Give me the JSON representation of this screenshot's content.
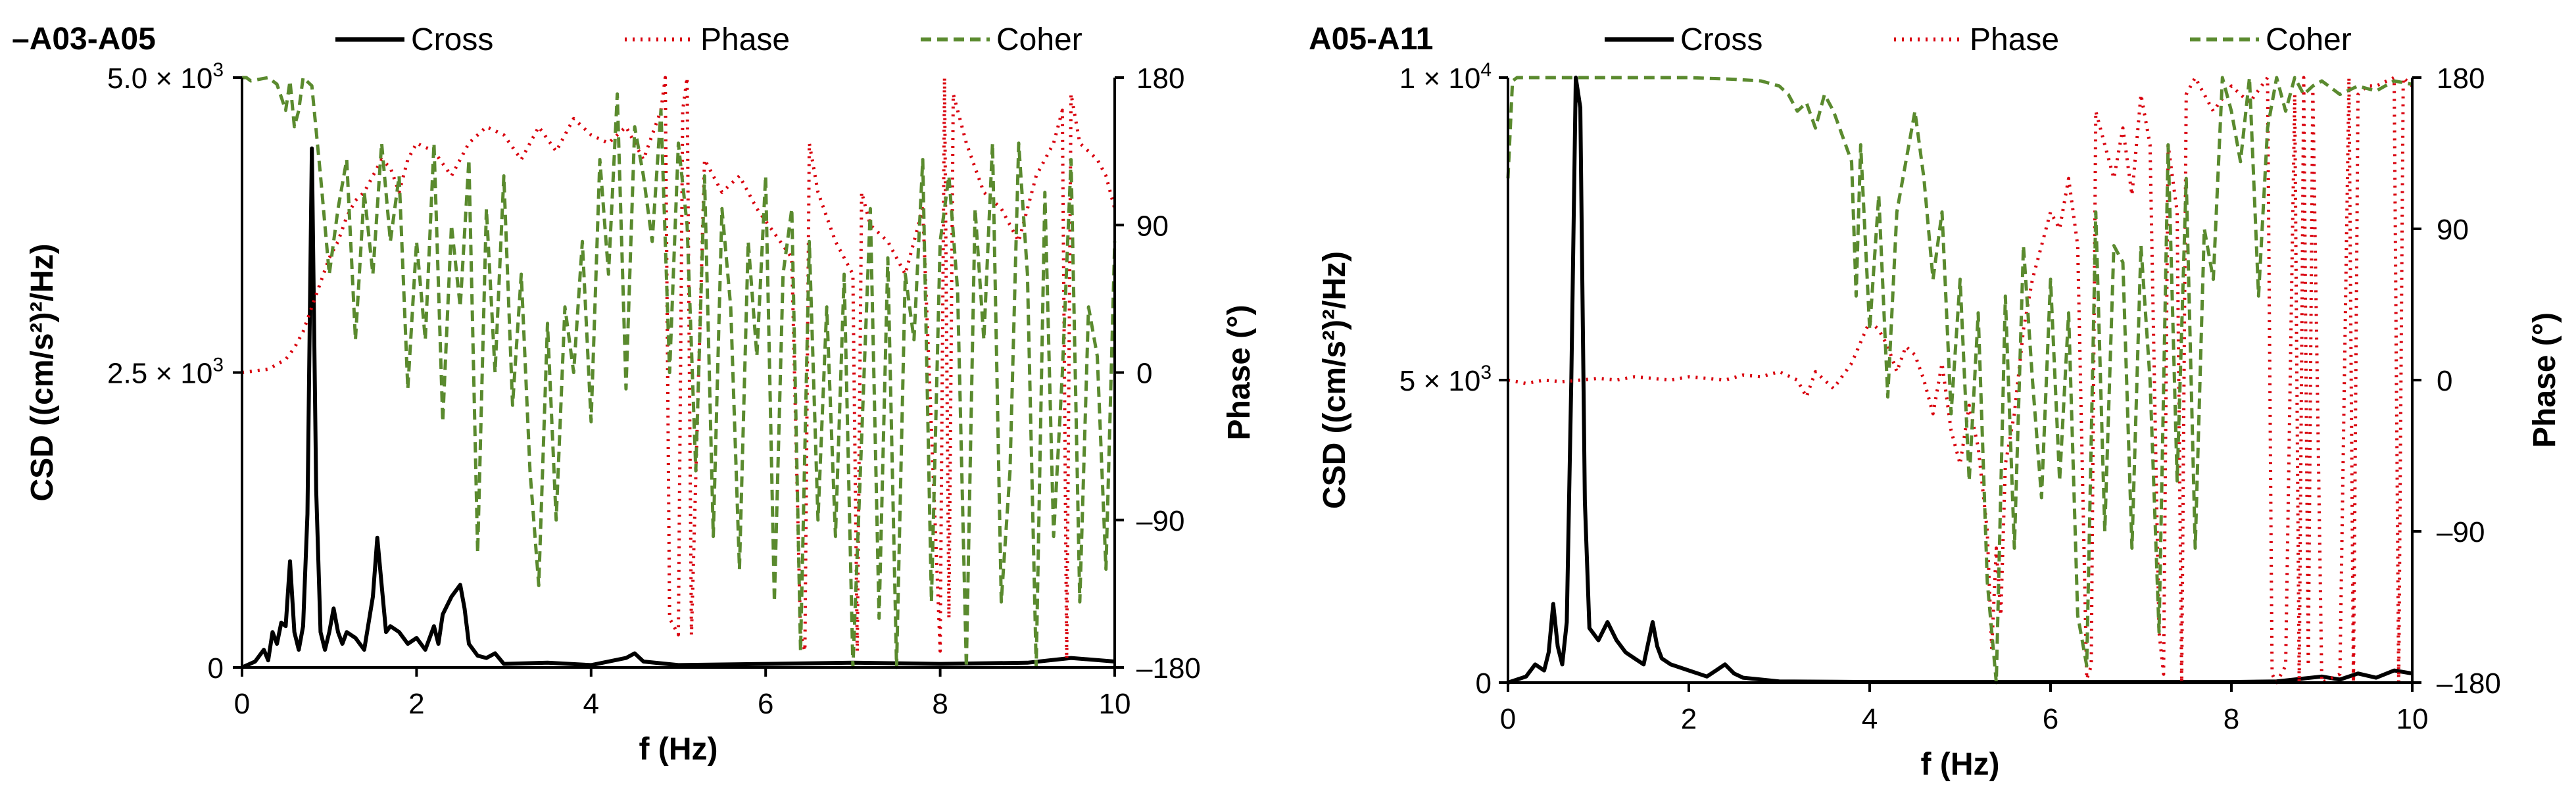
{
  "chart_data": [
    {
      "type": "line",
      "title": "–A03-A05",
      "xlabel": "f (Hz)",
      "ylabel": "CSD ((cm/s²)²/Hz)",
      "y2label": "Phase (°)",
      "xlim": [
        0,
        10
      ],
      "ylim": [
        0,
        5000
      ],
      "y2lim": [
        -180,
        180
      ],
      "x_ticks": [
        "0",
        "2",
        "4",
        "6",
        "8",
        "10"
      ],
      "y_ticks": [
        {
          "value": 0,
          "mant": "0",
          "exp": ""
        },
        {
          "value": 2500,
          "mant": "2.5 × 10",
          "exp": "3"
        },
        {
          "value": 5000,
          "mant": "5.0 × 10",
          "exp": "3"
        }
      ],
      "y2_ticks": [
        "180",
        "90",
        "0",
        "–90",
        "–180"
      ],
      "legend": [
        "Cross",
        "Phase",
        "Coher"
      ],
      "colors": {
        "cross": "#000000",
        "phase": "#d9000d",
        "coher": "#5a8a2e"
      },
      "series": [
        {
          "name": "Cross",
          "axis": "left",
          "x": [
            0,
            0.15,
            0.25,
            0.3,
            0.35,
            0.4,
            0.45,
            0.5,
            0.55,
            0.6,
            0.65,
            0.7,
            0.75,
            0.8,
            0.85,
            0.9,
            0.95,
            1.0,
            1.05,
            1.1,
            1.15,
            1.2,
            1.3,
            1.4,
            1.5,
            1.55,
            1.6,
            1.65,
            1.7,
            1.8,
            1.9,
            2.0,
            2.1,
            2.2,
            2.25,
            2.3,
            2.4,
            2.5,
            2.55,
            2.6,
            2.7,
            2.8,
            2.9,
            3.0,
            3.5,
            4.0,
            4.4,
            4.5,
            4.6,
            5.0,
            6.0,
            7.0,
            8.0,
            9.0,
            9.5,
            10.0
          ],
          "values": [
            0,
            50,
            150,
            60,
            300,
            200,
            380,
            350,
            900,
            300,
            150,
            350,
            1300,
            4400,
            1500,
            300,
            150,
            300,
            500,
            300,
            200,
            300,
            250,
            150,
            600,
            1100,
            700,
            300,
            350,
            300,
            200,
            250,
            150,
            350,
            200,
            450,
            600,
            700,
            500,
            200,
            100,
            80,
            120,
            30,
            40,
            20,
            80,
            120,
            50,
            20,
            30,
            40,
            30,
            40,
            80,
            50
          ]
        },
        {
          "name": "Phase",
          "axis": "right",
          "x": [
            0,
            0.3,
            0.5,
            0.6,
            0.7,
            0.8,
            0.9,
            1.0,
            1.1,
            1.2,
            1.3,
            1.4,
            1.5,
            1.6,
            1.7,
            1.8,
            1.9,
            2.0,
            2.2,
            2.4,
            2.6,
            2.8,
            3.0,
            3.2,
            3.4,
            3.6,
            3.8,
            4.0,
            4.2,
            4.4,
            4.6,
            4.8,
            4.85,
            4.9,
            5.0,
            5.05,
            5.1,
            5.15,
            5.3,
            5.5,
            5.7,
            5.9,
            6.1,
            6.3,
            6.4,
            6.45,
            6.5,
            6.6,
            6.8,
            7.0,
            7.05,
            7.1,
            7.2,
            7.4,
            7.6,
            7.8,
            8.0,
            8.05,
            8.1,
            8.15,
            8.3,
            8.5,
            8.7,
            8.9,
            9.1,
            9.3,
            9.4,
            9.45,
            9.5,
            9.6,
            9.8,
            9.9,
            10.0
          ],
          "values": [
            0,
            2,
            8,
            15,
            25,
            40,
            55,
            70,
            80,
            95,
            105,
            110,
            120,
            130,
            125,
            110,
            130,
            140,
            135,
            120,
            140,
            150,
            145,
            130,
            150,
            135,
            155,
            145,
            140,
            150,
            130,
            160,
            180,
            -150,
            -160,
            160,
            180,
            -160,
            130,
            110,
            120,
            100,
            85,
            70,
            -160,
            -170,
            140,
            110,
            80,
            60,
            -170,
            110,
            90,
            80,
            60,
            100,
            -170,
            180,
            -150,
            170,
            140,
            110,
            100,
            80,
            120,
            140,
            160,
            -175,
            170,
            140,
            130,
            120,
            100
          ]
        },
        {
          "name": "Coher",
          "axis": "right",
          "x": [
            0,
            0.05,
            0.1,
            0.2,
            0.3,
            0.4,
            0.5,
            0.55,
            0.6,
            0.65,
            0.7,
            0.8,
            0.9,
            1.0,
            1.1,
            1.2,
            1.3,
            1.4,
            1.5,
            1.6,
            1.7,
            1.8,
            1.9,
            2.0,
            2.1,
            2.2,
            2.3,
            2.4,
            2.5,
            2.6,
            2.7,
            2.8,
            2.9,
            3.0,
            3.1,
            3.2,
            3.3,
            3.4,
            3.5,
            3.6,
            3.7,
            3.8,
            3.9,
            4.0,
            4.1,
            4.2,
            4.3,
            4.4,
            4.5,
            4.6,
            4.7,
            4.8,
            4.9,
            5.0,
            5.1,
            5.2,
            5.3,
            5.4,
            5.5,
            5.6,
            5.7,
            5.8,
            5.9,
            6.0,
            6.1,
            6.2,
            6.3,
            6.4,
            6.5,
            6.6,
            6.7,
            6.8,
            6.9,
            7.0,
            7.1,
            7.2,
            7.3,
            7.4,
            7.5,
            7.6,
            7.7,
            7.8,
            7.9,
            8.0,
            8.1,
            8.2,
            8.3,
            8.4,
            8.5,
            8.6,
            8.7,
            8.8,
            8.9,
            9.0,
            9.1,
            9.2,
            9.3,
            9.4,
            9.5,
            9.6,
            9.7,
            9.8,
            9.9,
            10.0
          ],
          "values": [
            180,
            180,
            178,
            179,
            180,
            176,
            160,
            178,
            150,
            160,
            180,
            175,
            120,
            60,
            100,
            130,
            20,
            110,
            60,
            140,
            80,
            120,
            -10,
            80,
            20,
            140,
            -30,
            90,
            40,
            130,
            -110,
            100,
            0,
            120,
            -20,
            60,
            -60,
            -130,
            30,
            -90,
            40,
            0,
            80,
            -30,
            130,
            60,
            170,
            -10,
            150,
            120,
            80,
            160,
            0,
            140,
            90,
            -60,
            120,
            -100,
            100,
            40,
            -120,
            80,
            10,
            120,
            -140,
            60,
            100,
            -170,
            80,
            -90,
            40,
            -100,
            60,
            -180,
            -40,
            100,
            -150,
            70,
            -180,
            60,
            20,
            130,
            -140,
            80,
            120,
            50,
            -180,
            100,
            20,
            140,
            -140,
            -60,
            140,
            60,
            -180,
            110,
            -100,
            0,
            130,
            -140,
            40,
            10,
            -120,
            80
          ]
        }
      ]
    },
    {
      "type": "line",
      "title": "A05-A11",
      "xlabel": "f (Hz)",
      "ylabel": "CSD ((cm/s²)²/Hz)",
      "y2label": "Phase (°)",
      "xlim": [
        0,
        10
      ],
      "ylim": [
        0,
        10000
      ],
      "y2lim": [
        -180,
        180
      ],
      "x_ticks": [
        "0",
        "2",
        "4",
        "6",
        "8",
        "10"
      ],
      "y_ticks": [
        {
          "value": 0,
          "mant": "0",
          "exp": ""
        },
        {
          "value": 5000,
          "mant": "5 × 10",
          "exp": "3"
        },
        {
          "value": 10000,
          "mant": "1 × 10",
          "exp": "4"
        }
      ],
      "y2_ticks": [
        "180",
        "90",
        "0",
        "–90",
        "–180"
      ],
      "legend": [
        "Cross",
        "Phase",
        "Coher"
      ],
      "colors": {
        "cross": "#000000",
        "phase": "#d9000d",
        "coher": "#5a8a2e"
      },
      "series": [
        {
          "name": "Cross",
          "axis": "left",
          "x": [
            0,
            0.2,
            0.3,
            0.4,
            0.45,
            0.5,
            0.55,
            0.6,
            0.65,
            0.7,
            0.75,
            0.8,
            0.85,
            0.9,
            1.0,
            1.1,
            1.2,
            1.3,
            1.4,
            1.5,
            1.6,
            1.65,
            1.7,
            1.8,
            1.9,
            2.0,
            2.1,
            2.2,
            2.3,
            2.4,
            2.5,
            2.6,
            3.0,
            4.0,
            5.0,
            6.0,
            7.0,
            8.0,
            8.5,
            9.0,
            9.2,
            9.4,
            9.6,
            9.8,
            10.0
          ],
          "values": [
            0,
            100,
            300,
            200,
            500,
            1300,
            600,
            300,
            1000,
            5000,
            10000,
            9500,
            3000,
            900,
            700,
            1000,
            700,
            500,
            400,
            300,
            1000,
            600,
            400,
            300,
            250,
            200,
            150,
            100,
            200,
            300,
            150,
            80,
            20,
            10,
            10,
            10,
            10,
            10,
            20,
            100,
            50,
            150,
            80,
            200,
            150
          ]
        },
        {
          "name": "Phase",
          "axis": "right",
          "x": [
            0,
            0.2,
            0.4,
            0.6,
            0.8,
            1.0,
            1.2,
            1.4,
            1.6,
            1.8,
            2.0,
            2.2,
            2.4,
            2.6,
            2.8,
            3.0,
            3.2,
            3.3,
            3.4,
            3.6,
            3.8,
            4.0,
            4.1,
            4.2,
            4.3,
            4.4,
            4.5,
            4.6,
            4.7,
            4.8,
            4.9,
            5.0,
            5.1,
            5.2,
            5.3,
            5.35,
            5.4,
            5.45,
            5.5,
            5.6,
            5.7,
            5.8,
            5.9,
            6.0,
            6.1,
            6.2,
            6.3,
            6.4,
            6.45,
            6.5,
            6.6,
            6.7,
            6.8,
            6.9,
            7.0,
            7.1,
            7.2,
            7.25,
            7.3,
            7.4,
            7.45,
            7.5,
            7.6,
            7.8,
            8.0,
            8.2,
            8.4,
            8.45,
            8.5,
            8.6,
            8.7,
            8.75,
            8.8,
            8.85,
            8.9,
            9.0,
            9.2,
            9.3,
            9.35,
            9.4,
            9.5,
            9.6,
            9.8,
            9.85,
            9.9,
            10.0
          ],
          "values": [
            0,
            -2,
            0,
            -1,
            0,
            1,
            0,
            2,
            1,
            0,
            2,
            1,
            0,
            3,
            2,
            5,
            0,
            -10,
            5,
            -5,
            10,
            35,
            30,
            20,
            5,
            20,
            15,
            0,
            -20,
            10,
            -30,
            -50,
            -15,
            -40,
            -90,
            -160,
            -100,
            -140,
            -50,
            -20,
            30,
            60,
            80,
            100,
            90,
            120,
            80,
            -178,
            -170,
            160,
            140,
            120,
            150,
            110,
            170,
            140,
            -150,
            -175,
            140,
            100,
            -180,
            170,
            180,
            160,
            175,
            165,
            180,
            -175,
            -180,
            -170,
            170,
            -180,
            180,
            -170,
            175,
            -180,
            -175,
            180,
            -180,
            170,
            175,
            175,
            180,
            -180,
            180,
            175
          ]
        },
        {
          "name": "Coher",
          "axis": "right",
          "x": [
            0,
            0.05,
            0.1,
            0.5,
            1.0,
            1.5,
            2.0,
            2.5,
            2.8,
            3.0,
            3.1,
            3.2,
            3.3,
            3.4,
            3.5,
            3.6,
            3.7,
            3.8,
            3.85,
            3.9,
            4.0,
            4.1,
            4.2,
            4.3,
            4.4,
            4.5,
            4.6,
            4.7,
            4.8,
            4.9,
            5.0,
            5.1,
            5.2,
            5.3,
            5.4,
            5.5,
            5.6,
            5.7,
            5.8,
            5.9,
            6.0,
            6.1,
            6.2,
            6.3,
            6.4,
            6.5,
            6.6,
            6.7,
            6.8,
            6.9,
            7.0,
            7.1,
            7.2,
            7.3,
            7.4,
            7.5,
            7.6,
            7.7,
            7.8,
            7.9,
            8.0,
            8.1,
            8.2,
            8.3,
            8.4,
            8.5,
            8.6,
            8.7,
            8.8,
            8.9,
            9.0,
            9.2,
            9.4,
            9.6,
            9.8,
            10.0
          ],
          "values": [
            120,
            178,
            180,
            180,
            180,
            180,
            180,
            179,
            178,
            175,
            170,
            160,
            165,
            150,
            170,
            160,
            145,
            130,
            50,
            140,
            30,
            110,
            -10,
            100,
            130,
            160,
            120,
            60,
            100,
            -20,
            60,
            -60,
            40,
            -120,
            -180,
            50,
            -100,
            80,
            0,
            -70,
            60,
            -60,
            40,
            -140,
            -170,
            100,
            -90,
            80,
            70,
            -100,
            80,
            0,
            -150,
            140,
            -60,
            120,
            -100,
            90,
            60,
            180,
            160,
            130,
            180,
            50,
            150,
            180,
            160,
            180,
            170,
            175,
            178,
            170,
            175,
            172,
            178,
            176
          ]
        }
      ]
    }
  ]
}
